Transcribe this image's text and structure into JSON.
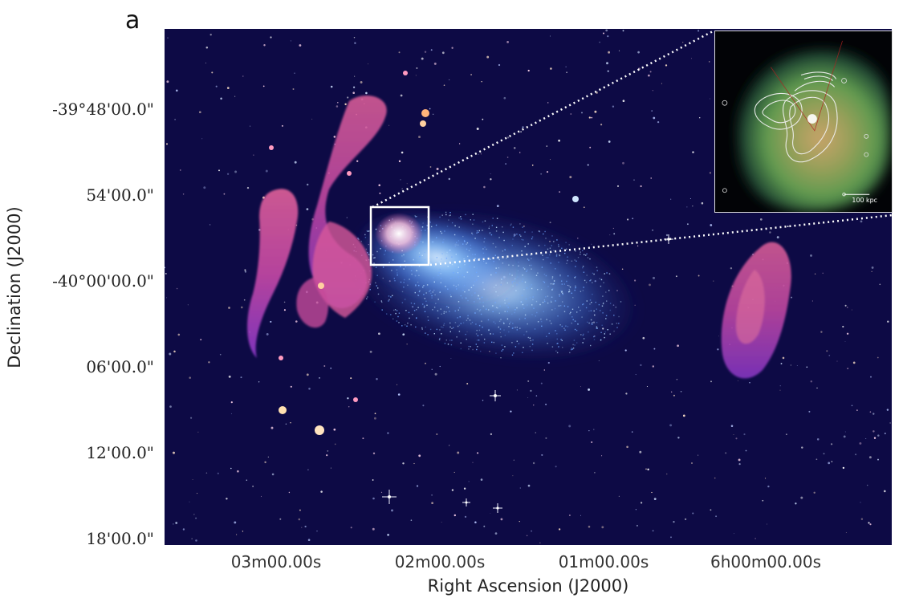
{
  "figure": {
    "panel_letter": "a",
    "xlabel": "Right Ascension (J2000)",
    "ylabel": "Declination (J2000)",
    "dec_ticks": [
      "-39°48'00.0\"",
      "54'00.0\"",
      "-40°00'00.0\"",
      "06'00.0\"",
      "12'00.0\"",
      "18'00.0\""
    ],
    "ra_ticks": [
      "03m00.00s",
      "02m00.00s",
      "01m00.00s",
      "6h00m00.00s"
    ]
  },
  "inset": {
    "scale_bar_label": "100 kpc"
  },
  "colors": {
    "sky_background": "#0d0a45",
    "xray_emission": "#7ab8ff",
    "radio_emission": "#d0508a",
    "inset_xray": "#6fa24e",
    "box_and_lines": "#ffffff"
  }
}
